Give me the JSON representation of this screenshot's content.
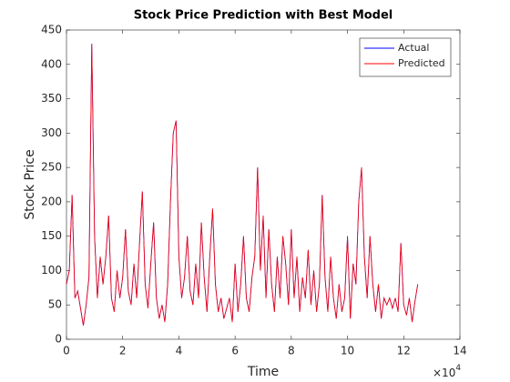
{
  "chart_data": {
    "type": "line",
    "title": "Stock Price Prediction with Best Model",
    "x_label": "Time",
    "y_label": "Stock Price",
    "x_multiplier": {
      "base": "×10",
      "exponent": "4"
    },
    "x": [
      0,
      1000,
      2000,
      3000,
      4000,
      5000,
      6000,
      7000,
      8000,
      9000,
      10000,
      11000,
      12000,
      13000,
      14000,
      15000,
      16000,
      17000,
      18000,
      19000,
      20000,
      21000,
      22000,
      23000,
      24000,
      25000,
      26000,
      27000,
      28000,
      29000,
      30000,
      31000,
      32000,
      33000,
      34000,
      35000,
      36000,
      37000,
      38000,
      39000,
      40000,
      41000,
      42000,
      43000,
      44000,
      45000,
      46000,
      47000,
      48000,
      49000,
      50000,
      51000,
      52000,
      53000,
      54000,
      55000,
      56000,
      57000,
      58000,
      59000,
      60000,
      61000,
      62000,
      63000,
      64000,
      65000,
      66000,
      67000,
      68000,
      69000,
      70000,
      71000,
      72000,
      73000,
      74000,
      75000,
      76000,
      77000,
      78000,
      79000,
      80000,
      81000,
      82000,
      83000,
      84000,
      85000,
      86000,
      87000,
      88000,
      89000,
      90000,
      91000,
      92000,
      93000,
      94000,
      95000,
      96000,
      97000,
      98000,
      99000,
      100000,
      101000,
      102000,
      103000,
      104000,
      105000,
      106000,
      107000,
      108000,
      109000,
      110000,
      111000,
      112000,
      113000,
      114000,
      115000,
      116000,
      117000,
      118000,
      119000,
      120000,
      121000,
      122000,
      123000,
      124000,
      125000
    ],
    "series": [
      {
        "name": "Actual",
        "color": "#0000ff",
        "values": [
          80,
          100,
          210,
          60,
          70,
          45,
          20,
          50,
          90,
          430,
          150,
          60,
          120,
          80,
          120,
          180,
          60,
          40,
          100,
          60,
          90,
          160,
          70,
          50,
          110,
          60,
          140,
          215,
          80,
          45,
          110,
          170,
          60,
          30,
          50,
          25,
          80,
          200,
          300,
          318,
          120,
          60,
          90,
          150,
          70,
          50,
          110,
          60,
          170,
          90,
          40,
          120,
          190,
          80,
          40,
          60,
          30,
          45,
          60,
          25,
          110,
          40,
          80,
          150,
          60,
          40,
          90,
          120,
          250,
          100,
          180,
          60,
          160,
          80,
          40,
          120,
          60,
          150,
          110,
          50,
          160,
          60,
          120,
          40,
          90,
          60,
          130,
          50,
          100,
          40,
          80,
          210,
          90,
          40,
          120,
          60,
          30,
          80,
          40,
          60,
          150,
          30,
          110,
          80,
          200,
          250,
          120,
          60,
          150,
          80,
          40,
          80,
          30,
          60,
          50,
          60,
          45,
          60,
          40,
          140,
          50,
          35,
          60,
          25,
          55,
          80
        ]
      },
      {
        "name": "Predicted",
        "color": "#ff0000",
        "values": [
          80,
          100,
          210,
          60,
          70,
          45,
          20,
          50,
          90,
          430,
          150,
          60,
          120,
          80,
          120,
          180,
          60,
          40,
          100,
          60,
          90,
          160,
          70,
          50,
          110,
          60,
          140,
          215,
          80,
          45,
          110,
          170,
          60,
          30,
          50,
          25,
          80,
          200,
          300,
          318,
          120,
          60,
          90,
          150,
          70,
          50,
          110,
          60,
          170,
          90,
          40,
          120,
          190,
          80,
          40,
          60,
          30,
          45,
          60,
          25,
          110,
          40,
          80,
          150,
          60,
          40,
          90,
          120,
          250,
          100,
          180,
          60,
          160,
          80,
          40,
          120,
          60,
          150,
          110,
          50,
          160,
          60,
          120,
          40,
          90,
          60,
          130,
          50,
          100,
          40,
          80,
          210,
          90,
          40,
          120,
          60,
          30,
          80,
          40,
          60,
          150,
          30,
          110,
          80,
          200,
          250,
          120,
          60,
          150,
          80,
          40,
          80,
          30,
          60,
          50,
          60,
          45,
          60,
          40,
          140,
          50,
          35,
          60,
          25,
          55,
          80
        ]
      }
    ],
    "xlim": [
      0,
      140000
    ],
    "ylim": [
      0,
      450
    ],
    "xticks": [
      0,
      {
        "value": 20000,
        "label": "2"
      },
      {
        "value": 40000,
        "label": "4"
      },
      {
        "value": 60000,
        "label": "6"
      },
      {
        "value": 80000,
        "label": "8"
      },
      {
        "value": 100000,
        "label": "10"
      },
      {
        "value": 120000,
        "label": "12"
      },
      {
        "value": 140000,
        "label": "14"
      }
    ],
    "yticks": [
      0,
      50,
      100,
      150,
      200,
      250,
      300,
      350,
      400,
      450
    ],
    "grid": false,
    "legend": "northeast"
  }
}
